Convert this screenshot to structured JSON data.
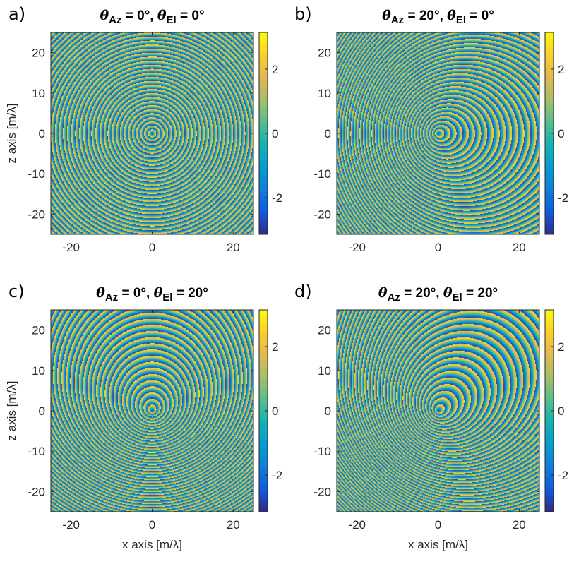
{
  "chart_data": [
    {
      "type": "heatmap",
      "panel_label": "a)",
      "title_parts": {
        "theta1": "θ",
        "sub1": "Az",
        "mid": " = 0°, ",
        "theta2": "θ",
        "sub2": "El",
        "end": " = 0°"
      },
      "theta_az_deg": 0,
      "theta_el_deg": 0,
      "xlim": [
        -25,
        25
      ],
      "ylim": [
        -25,
        25
      ],
      "xticks": [
        -20,
        0,
        20
      ],
      "yticks": [
        -20,
        -10,
        0,
        10,
        20
      ],
      "xlabel": "",
      "ylabel": "z axis [m/λ]",
      "colorbar": {
        "range": [
          -3.14159,
          3.14159
        ],
        "ticks": [
          -2,
          0,
          2
        ],
        "colormap": "parula"
      }
    },
    {
      "type": "heatmap",
      "panel_label": "b)",
      "title_parts": {
        "theta1": "θ",
        "sub1": "Az",
        "mid": " = 20°, ",
        "theta2": "θ",
        "sub2": "El",
        "end": " = 0°"
      },
      "theta_az_deg": 20,
      "theta_el_deg": 0,
      "xlim": [
        -25,
        25
      ],
      "ylim": [
        -25,
        25
      ],
      "xticks": [
        -20,
        0,
        20
      ],
      "yticks": [
        -20,
        -10,
        0,
        10,
        20
      ],
      "xlabel": "",
      "ylabel": "",
      "colorbar": {
        "range": [
          -3.14159,
          3.14159
        ],
        "ticks": [
          -2,
          0,
          2
        ],
        "colormap": "parula"
      }
    },
    {
      "type": "heatmap",
      "panel_label": "c)",
      "title_parts": {
        "theta1": "θ",
        "sub1": "Az",
        "mid": " = 0°, ",
        "theta2": "θ",
        "sub2": "El",
        "end": " = 20°"
      },
      "theta_az_deg": 0,
      "theta_el_deg": 20,
      "xlim": [
        -25,
        25
      ],
      "ylim": [
        -25,
        25
      ],
      "xticks": [
        -20,
        0,
        20
      ],
      "yticks": [
        -20,
        -10,
        0,
        10,
        20
      ],
      "xlabel": "x axis [m/λ]",
      "ylabel": "z axis [m/λ]",
      "colorbar": {
        "range": [
          -3.14159,
          3.14159
        ],
        "ticks": [
          -2,
          0,
          2
        ],
        "colormap": "parula"
      }
    },
    {
      "type": "heatmap",
      "panel_label": "d)",
      "title_parts": {
        "theta1": "θ",
        "sub1": "Az",
        "mid": " = 20°, ",
        "theta2": "θ",
        "sub2": "El",
        "end": " = 20°"
      },
      "theta_az_deg": 20,
      "theta_el_deg": 20,
      "xlim": [
        -25,
        25
      ],
      "ylim": [
        -25,
        25
      ],
      "xticks": [
        -20,
        0,
        20
      ],
      "yticks": [
        -20,
        -10,
        0,
        10,
        20
      ],
      "xlabel": "x axis [m/λ]",
      "ylabel": "",
      "colorbar": {
        "range": [
          -3.14159,
          3.14159
        ],
        "ticks": [
          -2,
          0,
          2
        ],
        "colormap": "parula"
      }
    }
  ]
}
